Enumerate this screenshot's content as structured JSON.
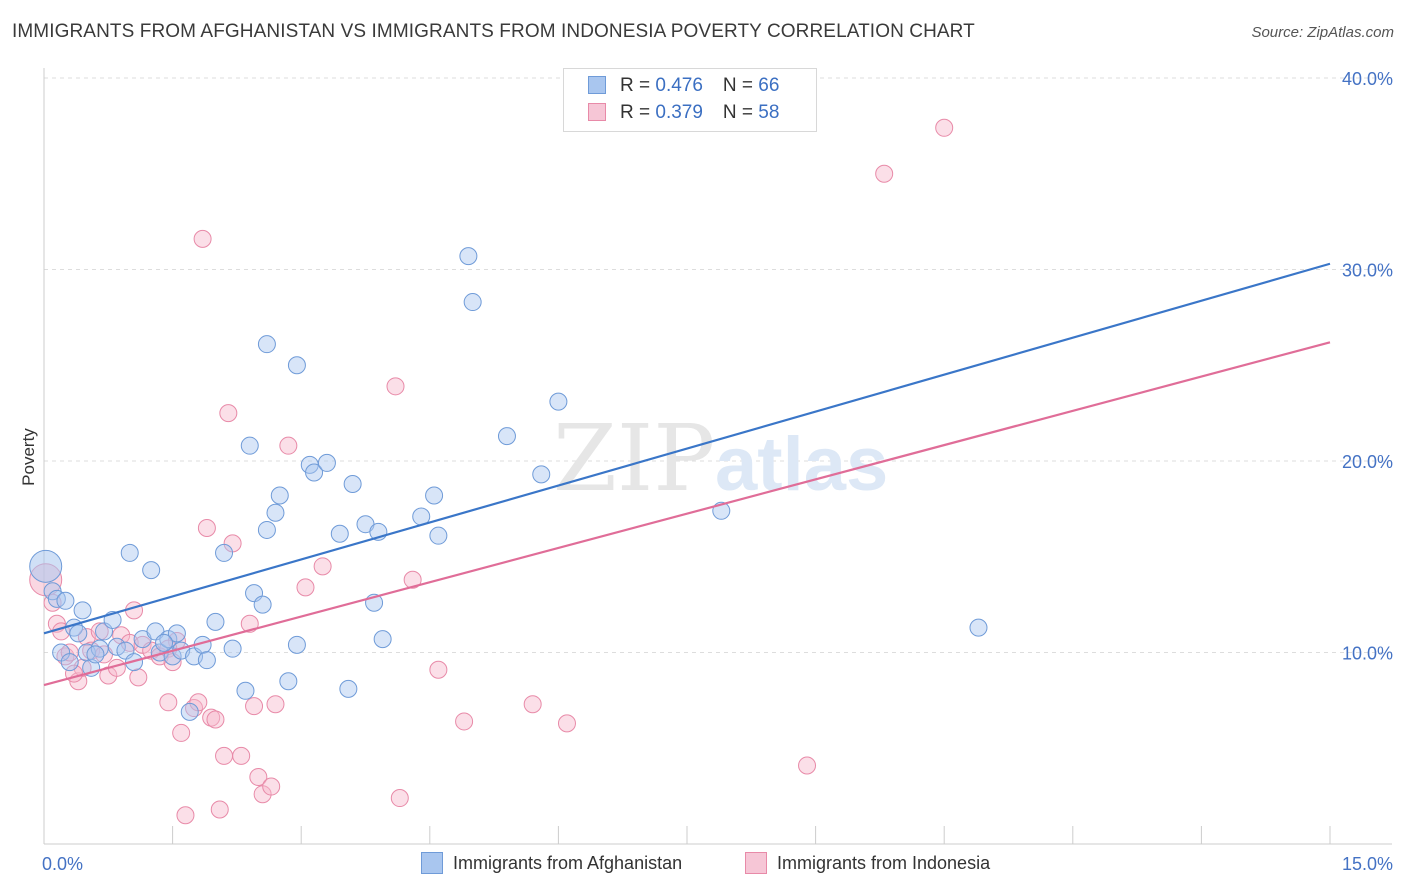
{
  "title": "IMMIGRANTS FROM AFGHANISTAN VS IMMIGRANTS FROM INDONESIA POVERTY CORRELATION CHART",
  "source": "Source: ZipAtlas.com",
  "watermark": {
    "zip": "ZIP",
    "atlas": "atlas"
  },
  "legend": {
    "rows": [
      {
        "r_label": "R = ",
        "r_value": "0.476",
        "n_label": "N = ",
        "n_value": "66"
      },
      {
        "r_label": "R = ",
        "r_value": "0.379",
        "n_label": "N = ",
        "n_value": "58"
      }
    ]
  },
  "colors": {
    "blue_fill": "#a9c6ef",
    "blue_stroke": "#6f9bd8",
    "blue_line": "#3a76c8",
    "pink_fill": "#f6b7cb",
    "pink_stroke": "#e88aa8",
    "pink_line": "#e06d98",
    "grid": "#dddddd",
    "tick_text": "#4472c4"
  },
  "chart_data": {
    "type": "scatter",
    "title": "IMMIGRANTS FROM AFGHANISTAN VS IMMIGRANTS FROM INDONESIA POVERTY CORRELATION CHART",
    "xlabel": "",
    "ylabel": "Poverty",
    "xlim": [
      0,
      15
    ],
    "ylim": [
      0,
      40
    ],
    "x_tick_labels": [
      "0.0%",
      "15.0%"
    ],
    "y_ticks": [
      10,
      20,
      30,
      40
    ],
    "y_tick_labels": [
      "10.0%",
      "20.0%",
      "30.0%",
      "40.0%"
    ],
    "grid": true,
    "legend_position": "top-center",
    "series": [
      {
        "name": "Immigrants from Afghanistan",
        "r": 0.476,
        "n": 66,
        "trend": {
          "x": [
            0,
            15
          ],
          "y": [
            11.0,
            30.3
          ]
        },
        "points": [
          [
            0.02,
            14.5
          ],
          [
            0.1,
            13.2
          ],
          [
            0.15,
            12.8
          ],
          [
            0.25,
            12.7
          ],
          [
            0.2,
            10.0
          ],
          [
            0.35,
            11.3
          ],
          [
            0.45,
            12.2
          ],
          [
            0.4,
            11.0
          ],
          [
            0.5,
            10.0
          ],
          [
            0.55,
            9.2
          ],
          [
            0.65,
            10.2
          ],
          [
            0.7,
            11.1
          ],
          [
            0.8,
            11.7
          ],
          [
            0.85,
            10.3
          ],
          [
            0.95,
            10.1
          ],
          [
            1.0,
            15.2
          ],
          [
            1.05,
            9.5
          ],
          [
            1.15,
            10.7
          ],
          [
            1.25,
            14.3
          ],
          [
            1.3,
            11.1
          ],
          [
            1.35,
            10.0
          ],
          [
            1.45,
            10.7
          ],
          [
            1.5,
            9.8
          ],
          [
            1.55,
            11.0
          ],
          [
            1.6,
            10.1
          ],
          [
            1.7,
            6.9
          ],
          [
            1.75,
            9.8
          ],
          [
            1.85,
            10.4
          ],
          [
            2.0,
            11.6
          ],
          [
            2.1,
            15.2
          ],
          [
            2.2,
            10.2
          ],
          [
            2.35,
            8.0
          ],
          [
            2.45,
            13.1
          ],
          [
            2.55,
            12.5
          ],
          [
            2.6,
            16.4
          ],
          [
            2.7,
            17.3
          ],
          [
            2.75,
            18.2
          ],
          [
            2.85,
            8.5
          ],
          [
            2.95,
            10.4
          ],
          [
            3.1,
            19.8
          ],
          [
            3.15,
            19.4
          ],
          [
            3.3,
            19.9
          ],
          [
            3.45,
            16.2
          ],
          [
            3.55,
            8.1
          ],
          [
            3.6,
            18.8
          ],
          [
            3.75,
            16.7
          ],
          [
            3.85,
            12.6
          ],
          [
            3.9,
            16.3
          ],
          [
            3.95,
            10.7
          ],
          [
            4.4,
            17.1
          ],
          [
            4.55,
            18.2
          ],
          [
            4.6,
            16.1
          ],
          [
            4.95,
            30.7
          ],
          [
            5.0,
            28.3
          ],
          [
            5.4,
            21.3
          ],
          [
            5.8,
            19.3
          ],
          [
            6.0,
            23.1
          ],
          [
            7.9,
            17.4
          ],
          [
            10.9,
            11.3
          ],
          [
            2.4,
            20.8
          ],
          [
            2.6,
            26.1
          ],
          [
            2.95,
            25.0
          ],
          [
            0.3,
            9.5
          ],
          [
            0.6,
            9.9
          ],
          [
            1.4,
            10.5
          ],
          [
            1.9,
            9.6
          ]
        ]
      },
      {
        "name": "Immigrants from Indonesia",
        "r": 0.379,
        "n": 58,
        "trend": {
          "x": [
            0,
            15
          ],
          "y": [
            8.3,
            26.2
          ]
        },
        "points": [
          [
            0.02,
            13.8
          ],
          [
            0.1,
            12.6
          ],
          [
            0.15,
            11.5
          ],
          [
            0.2,
            11.1
          ],
          [
            0.25,
            9.8
          ],
          [
            0.3,
            10.0
          ],
          [
            0.4,
            8.5
          ],
          [
            0.45,
            9.2
          ],
          [
            0.5,
            10.8
          ],
          [
            0.55,
            10.1
          ],
          [
            0.65,
            11.1
          ],
          [
            0.7,
            9.9
          ],
          [
            0.75,
            8.8
          ],
          [
            0.85,
            9.2
          ],
          [
            0.9,
            10.9
          ],
          [
            1.0,
            10.5
          ],
          [
            1.05,
            12.2
          ],
          [
            1.15,
            10.4
          ],
          [
            1.25,
            10.1
          ],
          [
            1.35,
            9.8
          ],
          [
            1.45,
            7.4
          ],
          [
            1.55,
            10.6
          ],
          [
            1.6,
            5.8
          ],
          [
            1.65,
            1.5
          ],
          [
            1.75,
            7.1
          ],
          [
            1.8,
            7.4
          ],
          [
            1.85,
            31.6
          ],
          [
            1.9,
            16.5
          ],
          [
            1.95,
            6.6
          ],
          [
            2.05,
            1.8
          ],
          [
            2.1,
            4.6
          ],
          [
            2.15,
            22.5
          ],
          [
            2.2,
            15.7
          ],
          [
            2.3,
            4.6
          ],
          [
            2.4,
            11.5
          ],
          [
            2.45,
            7.2
          ],
          [
            2.5,
            3.5
          ],
          [
            2.55,
            2.6
          ],
          [
            2.65,
            3.0
          ],
          [
            2.7,
            7.3
          ],
          [
            2.85,
            20.8
          ],
          [
            3.05,
            13.4
          ],
          [
            3.25,
            14.5
          ],
          [
            4.1,
            23.9
          ],
          [
            4.15,
            2.4
          ],
          [
            4.3,
            13.8
          ],
          [
            4.6,
            9.1
          ],
          [
            4.9,
            6.4
          ],
          [
            5.7,
            7.3
          ],
          [
            6.1,
            6.3
          ],
          [
            8.9,
            4.1
          ],
          [
            9.8,
            35.0
          ],
          [
            10.5,
            37.4
          ],
          [
            1.45,
            10.2
          ],
          [
            1.5,
            9.5
          ],
          [
            0.35,
            8.9
          ],
          [
            1.1,
            8.7
          ],
          [
            2.0,
            6.5
          ]
        ]
      }
    ]
  },
  "bottom_legend": [
    "Immigrants from Afghanistan",
    "Immigrants from Indonesia"
  ]
}
